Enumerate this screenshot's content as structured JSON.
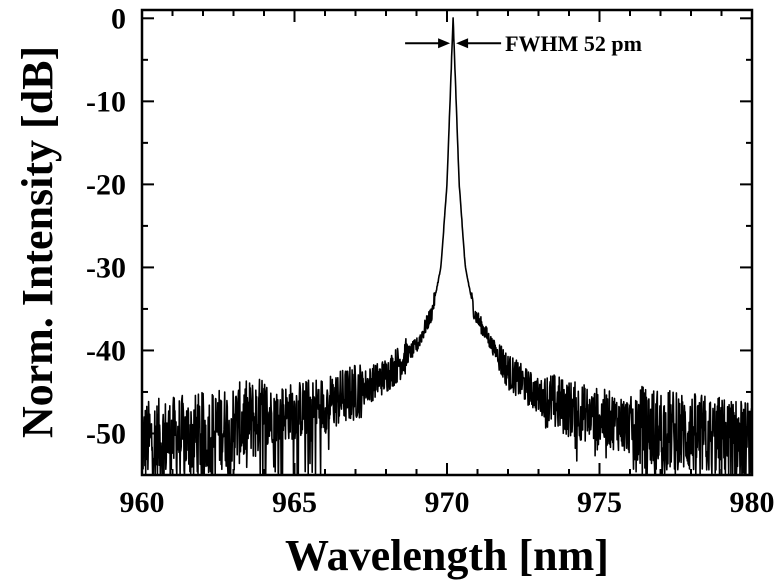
{
  "chart_data": {
    "type": "line",
    "title": "",
    "xlabel": "Wavelength [nm]",
    "ylabel": "Norm. Intensity [dB]",
    "xlim": [
      960,
      980
    ],
    "ylim": [
      -55,
      1
    ],
    "x_ticks": [
      960,
      965,
      970,
      975,
      980
    ],
    "x_tick_labels": [
      "960",
      "965",
      "970",
      "975",
      "980"
    ],
    "y_ticks": [
      0,
      -10,
      -20,
      -30,
      -40,
      -50
    ],
    "y_tick_labels": [
      "0",
      "-10",
      "-20",
      "-30",
      "-40",
      "-50"
    ],
    "grid": false,
    "legend": "none",
    "line_color": "#000000",
    "annotation": {
      "text": "FWHM 52 pm",
      "x": 970.2,
      "y": -3
    },
    "series": [
      {
        "peak_wavelength": 970.2,
        "peak_value": 0,
        "fwhm_pm": 52,
        "envelope": {
          "x": [
            960,
            962,
            964,
            966,
            967,
            968,
            969,
            969.5,
            969.8,
            970.0,
            970.1,
            970.2,
            970.3,
            970.4,
            970.6,
            970.9,
            971.5,
            972,
            973,
            974,
            976,
            978,
            980
          ],
          "y": [
            -51,
            -50,
            -48,
            -46.5,
            -45,
            -43,
            -39.5,
            -35.5,
            -30,
            -20,
            -10,
            0,
            -10,
            -20,
            -30,
            -35.5,
            -39.5,
            -42.5,
            -45.5,
            -47,
            -49,
            -50,
            -51
          ]
        }
      }
    ]
  }
}
